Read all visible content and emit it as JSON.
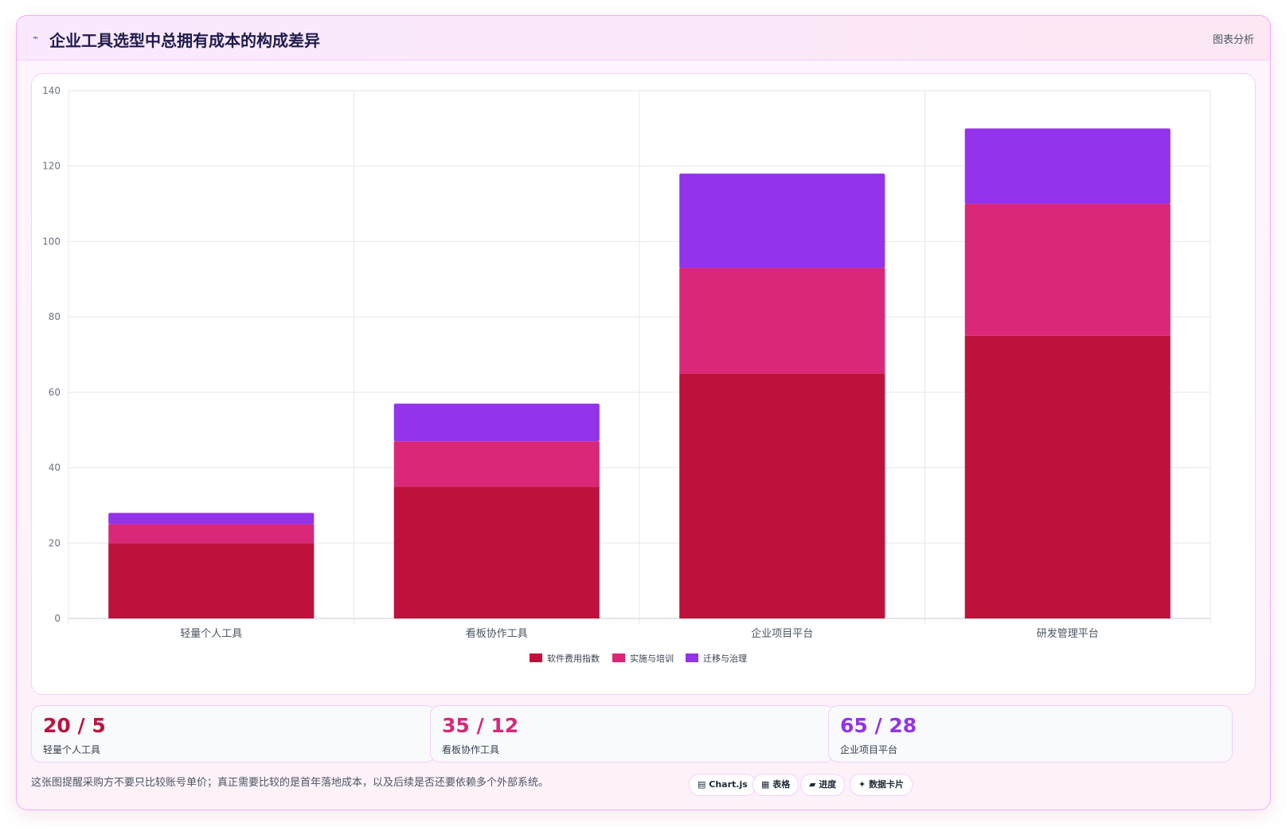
{
  "header": {
    "icon": "⌁",
    "icon_name": "pulse-icon",
    "title": "企业工具选型中总拥有成本的构成差异",
    "tag": "图表分析"
  },
  "chart_data": {
    "type": "bar",
    "stacked": true,
    "categories": [
      "轻量个人工具",
      "看板协作工具",
      "企业项目平台",
      "研发管理平台"
    ],
    "series": [
      {
        "name": "软件费用指数",
        "values": [
          20,
          35,
          65,
          75
        ],
        "color": "#be123c"
      },
      {
        "name": "实施与培训",
        "values": [
          5,
          12,
          28,
          35
        ],
        "color": "#db2777"
      },
      {
        "name": "迁移与治理",
        "values": [
          3,
          10,
          25,
          20
        ],
        "color": "#9333ea"
      }
    ],
    "ylim": [
      0,
      140
    ],
    "yticks": [
      0,
      20,
      40,
      60,
      80,
      100,
      120,
      140
    ],
    "grid": true,
    "legend": "bottom",
    "xlabel": "",
    "ylabel": ""
  },
  "stats": [
    {
      "value": "20 / 5",
      "label": "轻量个人工具",
      "color": "#be123c"
    },
    {
      "value": "35 / 12",
      "label": "看板协作工具",
      "color": "#db2777"
    },
    {
      "value": "65 / 28",
      "label": "企业项目平台",
      "color": "#9333ea"
    }
  ],
  "note": "这张图提醒采购方不要只比较账号单价；真正需要比较的是首年落地成本，以及后续是否还要依赖多个外部系统。",
  "pills": [
    {
      "icon": "▤",
      "label": "Chart.js"
    },
    {
      "icon": "▦",
      "label": "表格"
    },
    {
      "icon": "▰",
      "label": "进度"
    },
    {
      "icon": "✦",
      "label": "数据卡片"
    }
  ]
}
